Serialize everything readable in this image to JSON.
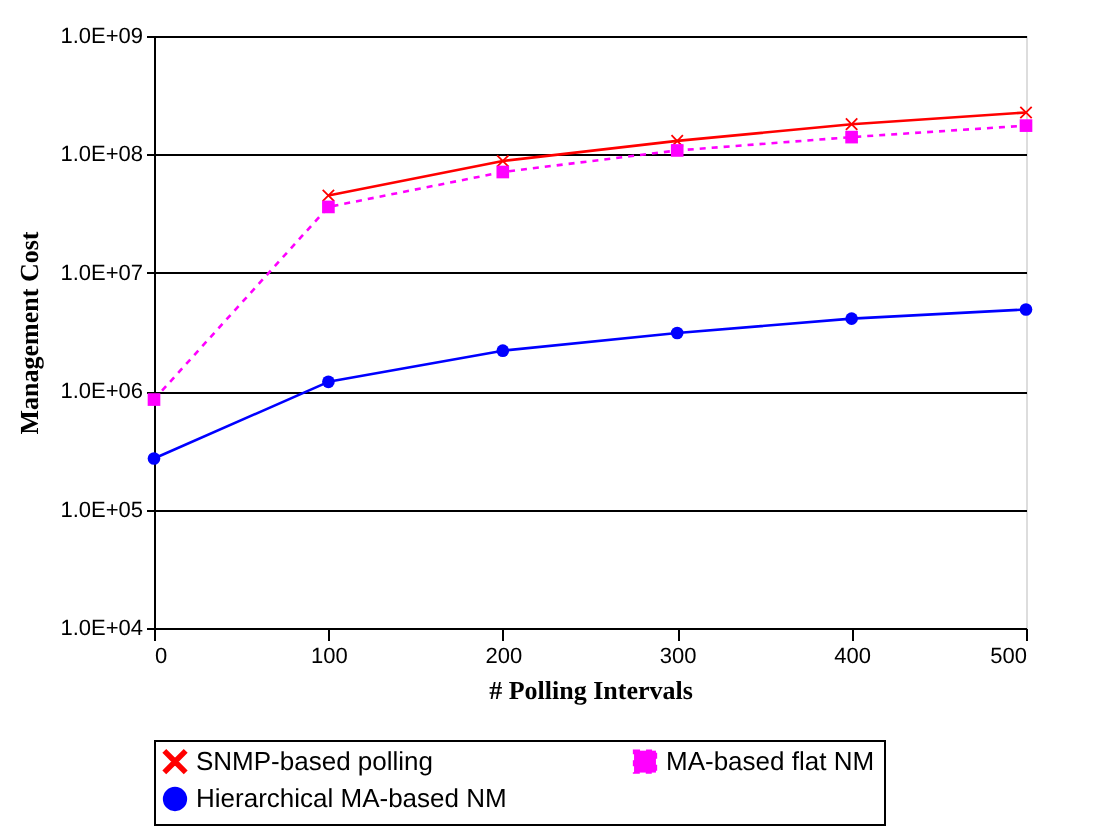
{
  "chart_data": {
    "type": "line",
    "xlabel": "# Polling Intervals",
    "ylabel": "Management Cost",
    "x": [
      0,
      100,
      200,
      300,
      400,
      500
    ],
    "series": [
      {
        "name": "SNMP-based polling",
        "color": "#ff0000",
        "marker": "cross",
        "line_style": "solid",
        "values": [
          null,
          45000000,
          88000000,
          130000000,
          180000000,
          226000000
        ]
      },
      {
        "name": "MA-based flat NM",
        "color": "#ff00ff",
        "marker": "square",
        "line_style": "dotted",
        "values": [
          850000,
          36000000,
          71000000,
          108000000,
          140000000,
          175000000
        ]
      },
      {
        "name": "Hierarchical MA-based NM",
        "color": "#0000ff",
        "marker": "circle",
        "line_style": "solid",
        "values": [
          270000,
          1200000,
          2200000,
          3100000,
          4100000,
          4900000
        ]
      }
    ],
    "log": true,
    "xlim": [
      0,
      500
    ],
    "xticks": [
      0,
      100,
      200,
      300,
      400,
      500
    ],
    "ylim": [
      10000,
      1000000000
    ],
    "yticks": [
      {
        "value": 10000,
        "label": "1.0E+04"
      },
      {
        "value": 100000,
        "label": "1.0E+05"
      },
      {
        "value": 1000000,
        "label": "1.0E+06"
      },
      {
        "value": 10000000,
        "label": "1.0E+07"
      },
      {
        "value": 100000000,
        "label": "1.0E+08"
      },
      {
        "value": 1000000000,
        "label": "1.0E+09"
      }
    ],
    "grid": "y",
    "legend": "bottom"
  }
}
